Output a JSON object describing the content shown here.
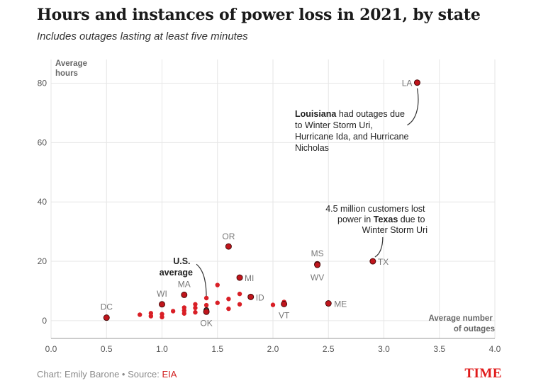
{
  "chart_data": {
    "type": "scatter",
    "title": "Hours and instances of power loss in 2021, by state",
    "subtitle": "Includes outages lasting at least five minutes",
    "xlabel": "Average number of outages",
    "xlabel_lines": [
      "Average number",
      "of outages"
    ],
    "ylabel": "Average hours",
    "ylabel_lines": [
      "Average",
      "hours"
    ],
    "xlim": [
      0,
      4
    ],
    "ylim": [
      -6,
      88
    ],
    "xticks": [
      0,
      0.5,
      1,
      1.5,
      2,
      2.5,
      3,
      3.5,
      4
    ],
    "xtick_labels": [
      "0.0",
      "0.5",
      "1.0",
      "1.5",
      "2.0",
      "2.5",
      "3.0",
      "3.5",
      "4.0"
    ],
    "yticks": [
      0,
      20,
      40,
      60,
      80
    ],
    "ytick_labels": [
      "0",
      "20",
      "40",
      "60",
      "80"
    ],
    "grid": true,
    "labeled_points": [
      {
        "label": "LA",
        "x": 3.3,
        "y": 80.2
      },
      {
        "label": "OR",
        "x": 1.6,
        "y": 25
      },
      {
        "label": "TX",
        "x": 2.9,
        "y": 20
      },
      {
        "label": "MS",
        "x": 2.4,
        "y": 19
      },
      {
        "label": "WV",
        "x": 2.4,
        "y": 18.8
      },
      {
        "label": "MI",
        "x": 1.7,
        "y": 14.5
      },
      {
        "label": "MA",
        "x": 1.2,
        "y": 8.7
      },
      {
        "label": "ID",
        "x": 1.8,
        "y": 8
      },
      {
        "label": "ME",
        "x": 2.5,
        "y": 5.8
      },
      {
        "label": "WI",
        "x": 1.0,
        "y": 5.5
      },
      {
        "label": "VT",
        "x": 2.1,
        "y": 5.6
      },
      {
        "label": "OK",
        "x": 1.4,
        "y": 3
      },
      {
        "label": "DC",
        "x": 0.5,
        "y": 1
      }
    ],
    "other_points": [
      {
        "x": 0.8,
        "y": 2
      },
      {
        "x": 0.9,
        "y": 1.5
      },
      {
        "x": 0.9,
        "y": 2.5
      },
      {
        "x": 1.0,
        "y": 1.2
      },
      {
        "x": 1.0,
        "y": 2.2
      },
      {
        "x": 1.1,
        "y": 3.2
      },
      {
        "x": 1.2,
        "y": 2.4
      },
      {
        "x": 1.2,
        "y": 3.4
      },
      {
        "x": 1.2,
        "y": 4.4
      },
      {
        "x": 1.3,
        "y": 2.8
      },
      {
        "x": 1.3,
        "y": 4.3
      },
      {
        "x": 1.3,
        "y": 5.5
      },
      {
        "x": 1.4,
        "y": 3.8
      },
      {
        "x": 1.4,
        "y": 5.2
      },
      {
        "x": 1.4,
        "y": 7.6
      },
      {
        "x": 1.5,
        "y": 6
      },
      {
        "x": 1.5,
        "y": 12
      },
      {
        "x": 1.6,
        "y": 4
      },
      {
        "x": 1.6,
        "y": 7.3
      },
      {
        "x": 1.7,
        "y": 5.5
      },
      {
        "x": 1.7,
        "y": 9
      },
      {
        "x": 2.0,
        "y": 5.3
      },
      {
        "x": 2.1,
        "y": 6.3
      }
    ],
    "us_average": {
      "label_lines": [
        "U.S.",
        "average"
      ],
      "x": 1.4,
      "y": 3.5
    },
    "annotations": [
      {
        "id": "louisiana",
        "bold": "Louisiana",
        "lines": [
          "had outages due",
          "to Winter Storm Uri,",
          "Hurricane Ida, and Hurricane",
          "Nicholas"
        ]
      },
      {
        "id": "texas",
        "lines": [
          "4.5 million customers lost",
          "power in",
          "Texas",
          "due to",
          "Winter Storm Uri"
        ]
      }
    ],
    "colors": {
      "point": "#d91f26",
      "labeled_point": "#c0151c",
      "outline": "#4a0a0a",
      "grid": "#e6e6e6",
      "axis": "#999999",
      "tick": "#555555",
      "label": "#777777"
    }
  },
  "footer": {
    "credit": "Chart: Emily Barone • Source: ",
    "source": "EIA"
  },
  "brand": "TIME"
}
